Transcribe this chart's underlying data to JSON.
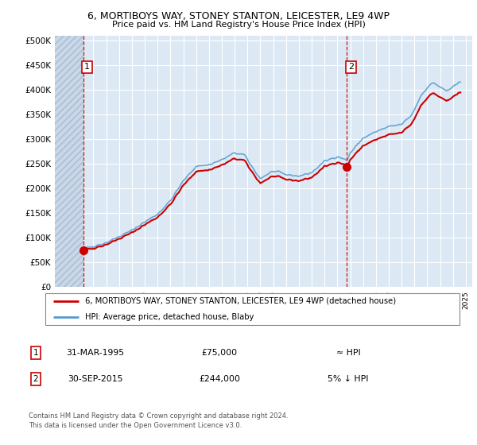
{
  "title1": "6, MORTIBOYS WAY, STONEY STANTON, LEICESTER, LE9 4WP",
  "title2": "Price paid vs. HM Land Registry's House Price Index (HPI)",
  "background_color": "#ffffff",
  "plot_bg_color": "#dce9f5",
  "grid_color": "#ffffff",
  "hpi_color": "#5599cc",
  "price_color": "#cc0000",
  "sale1_x": 1995.21,
  "sale1_y": 75000,
  "sale2_x": 2015.75,
  "sale2_y": 244000,
  "legend_line1": "6, MORTIBOYS WAY, STONEY STANTON, LEICESTER, LE9 4WP (detached house)",
  "legend_line2": "HPI: Average price, detached house, Blaby",
  "ann1_date": "31-MAR-1995",
  "ann1_price": "£75,000",
  "ann1_hpi": "≈ HPI",
  "ann2_date": "30-SEP-2015",
  "ann2_price": "£244,000",
  "ann2_hpi": "5% ↓ HPI",
  "footnote": "Contains HM Land Registry data © Crown copyright and database right 2024.\nThis data is licensed under the Open Government Licence v3.0.",
  "yticks": [
    0,
    50000,
    100000,
    150000,
    200000,
    250000,
    300000,
    350000,
    400000,
    450000,
    500000
  ],
  "ytick_labels": [
    "£0",
    "£50K",
    "£100K",
    "£150K",
    "£200K",
    "£250K",
    "£300K",
    "£350K",
    "£400K",
    "£450K",
    "£500K"
  ],
  "ylim": [
    0,
    510000
  ],
  "xlim_start": 1993.0,
  "xlim_end": 2025.5
}
